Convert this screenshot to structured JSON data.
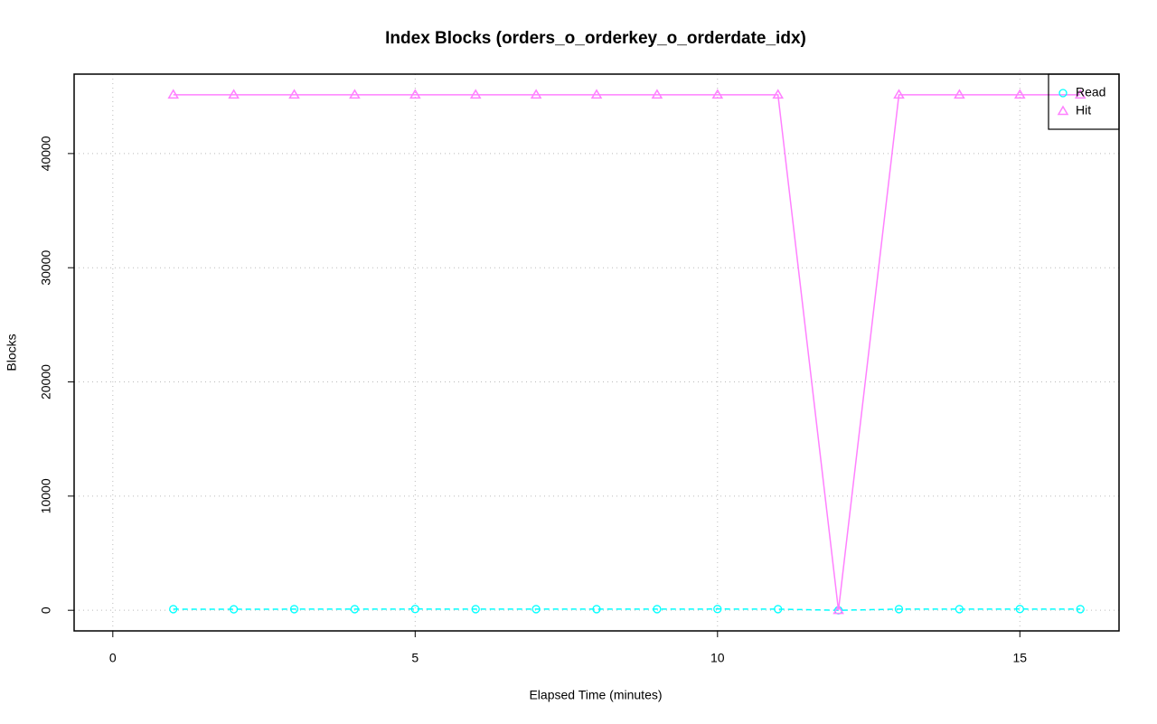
{
  "chart_data": {
    "type": "line",
    "title": "Index Blocks (orders_o_orderkey_o_orderdate_idx)",
    "x_label": "Elapsed Time (minutes)",
    "y_label": "Blocks",
    "x": [
      1,
      2,
      3,
      4,
      5,
      6,
      7,
      8,
      9,
      10,
      11,
      12,
      13,
      14,
      15,
      16
    ],
    "series": [
      {
        "name": "Read",
        "color": "#00ffff",
        "marker": "circle",
        "dashed": true,
        "values": [
          100,
          90,
          100,
          100,
          110,
          100,
          100,
          100,
          100,
          110,
          100,
          0,
          100,
          100,
          110,
          100
        ]
      },
      {
        "name": "Hit",
        "color": "#ff80ff",
        "marker": "triangle",
        "dashed": false,
        "values": [
          45150,
          45150,
          45150,
          45150,
          45150,
          45150,
          45150,
          45150,
          45150,
          45150,
          45150,
          0,
          45150,
          45150,
          45150,
          45150
        ]
      }
    ],
    "xlim": [
      -0.64,
      16.64
    ],
    "xticks": [
      0,
      5,
      10,
      15
    ],
    "ylim": [
      -1806,
      46956
    ],
    "yticks": [
      0,
      10000,
      20000,
      30000,
      40000
    ],
    "grid": true,
    "legend_position": "top-right"
  }
}
